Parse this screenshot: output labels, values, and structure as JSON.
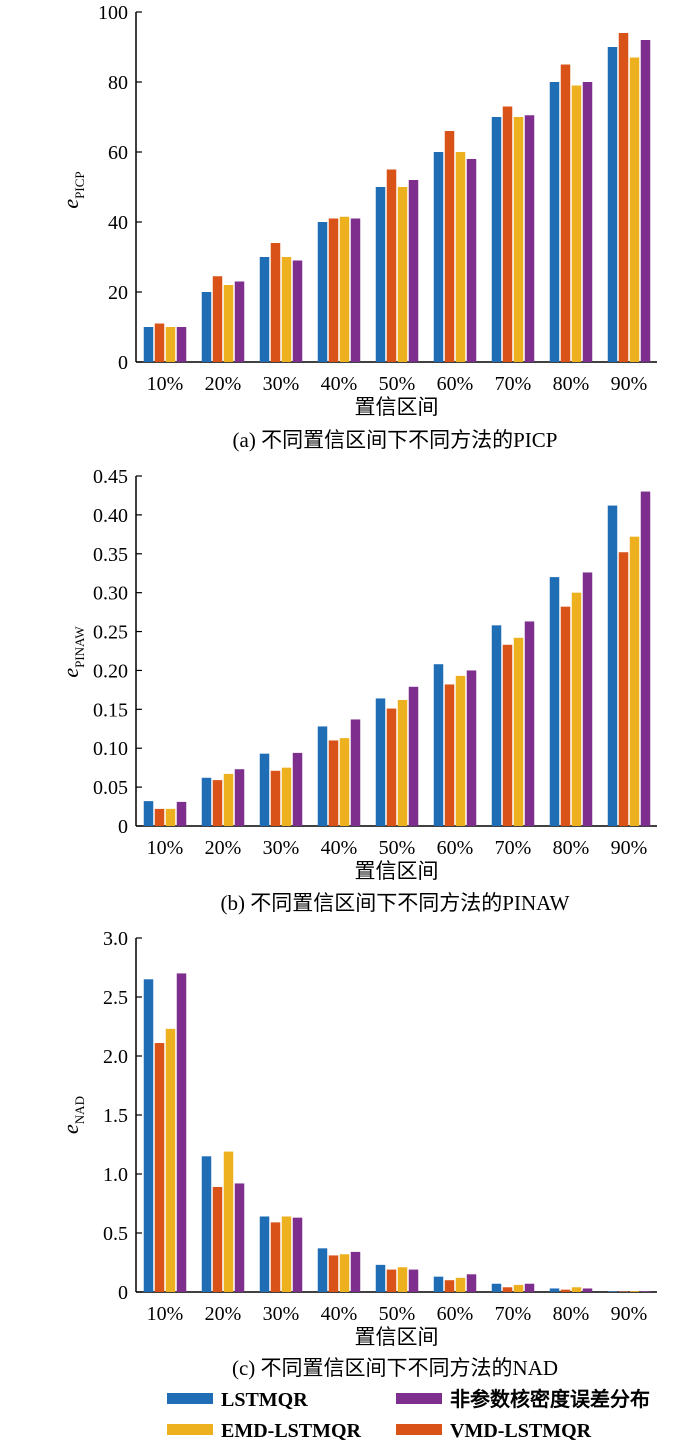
{
  "series_colors": [
    "#1f6db5",
    "#d95319",
    "#edb120",
    "#7e2f8e"
  ],
  "legend": {
    "items": [
      {
        "label": "LSTMQR",
        "color": "#1f6db5"
      },
      {
        "label": "非参数核密度误差分布",
        "color": "#7e2f8e"
      },
      {
        "label": "EMD-LSTMQR",
        "color": "#edb120"
      },
      {
        "label": "VMD-LSTMQR",
        "color": "#d95319"
      }
    ]
  },
  "chart_data": [
    {
      "type": "bar",
      "caption": "(a)  不同置信区间下不同方法的PICP",
      "xlabel": "置信区间",
      "ylabel_main": "e",
      "ylabel_sub": "PICP",
      "categories": [
        "10%",
        "20%",
        "30%",
        "40%",
        "50%",
        "60%",
        "70%",
        "80%",
        "90%"
      ],
      "ylim": [
        0,
        100
      ],
      "yticks": [
        "0",
        "20",
        "40",
        "60",
        "80",
        "100"
      ],
      "series": [
        {
          "values": [
            10,
            20,
            30,
            40,
            50,
            60,
            70,
            80,
            90
          ]
        },
        {
          "values": [
            11,
            24.5,
            34,
            41,
            55,
            66,
            73,
            85,
            94
          ]
        },
        {
          "values": [
            10,
            22,
            30,
            41.5,
            50,
            60,
            70,
            79,
            87
          ]
        },
        {
          "values": [
            10,
            23,
            29,
            41,
            52,
            58,
            70.5,
            80,
            92
          ]
        }
      ]
    },
    {
      "type": "bar",
      "caption": "(b)  不同置信区间下不同方法的PINAW",
      "xlabel": "置信区间",
      "ylabel_main": "e",
      "ylabel_sub": "PINAW",
      "categories": [
        "10%",
        "20%",
        "30%",
        "40%",
        "50%",
        "60%",
        "70%",
        "80%",
        "90%"
      ],
      "ylim": [
        0,
        0.45
      ],
      "yticks": [
        "0",
        "0.05",
        "0.10",
        "0.15",
        "0.20",
        "0.25",
        "0.30",
        "0.35",
        "0.40",
        "0.45"
      ],
      "series": [
        {
          "values": [
            0.032,
            0.062,
            0.093,
            0.128,
            0.164,
            0.208,
            0.258,
            0.32,
            0.412
          ]
        },
        {
          "values": [
            0.022,
            0.059,
            0.071,
            0.11,
            0.151,
            0.182,
            0.233,
            0.282,
            0.352
          ]
        },
        {
          "values": [
            0.022,
            0.067,
            0.075,
            0.113,
            0.162,
            0.193,
            0.242,
            0.3,
            0.372
          ]
        },
        {
          "values": [
            0.031,
            0.073,
            0.094,
            0.137,
            0.179,
            0.2,
            0.263,
            0.326,
            0.43
          ]
        }
      ]
    },
    {
      "type": "bar",
      "caption": "(c)  不同置信区间下不同方法的NAD",
      "xlabel": "置信区间",
      "ylabel_main": "e",
      "ylabel_sub": "NAD",
      "categories": [
        "10%",
        "20%",
        "30%",
        "40%",
        "50%",
        "60%",
        "70%",
        "80%",
        "90%"
      ],
      "ylim": [
        0,
        3.0
      ],
      "yticks": [
        "0",
        "0.5",
        "1.0",
        "1.5",
        "2.0",
        "2.5",
        "3.0"
      ],
      "series": [
        {
          "values": [
            2.65,
            1.15,
            0.64,
            0.37,
            0.23,
            0.13,
            0.07,
            0.03,
            0.005
          ]
        },
        {
          "values": [
            2.11,
            0.89,
            0.59,
            0.31,
            0.19,
            0.1,
            0.04,
            0.02,
            0.004
          ]
        },
        {
          "values": [
            2.23,
            1.19,
            0.64,
            0.32,
            0.21,
            0.12,
            0.06,
            0.04,
            0.007
          ]
        },
        {
          "values": [
            2.7,
            0.92,
            0.63,
            0.34,
            0.19,
            0.15,
            0.07,
            0.03,
            0.006
          ]
        }
      ]
    }
  ]
}
